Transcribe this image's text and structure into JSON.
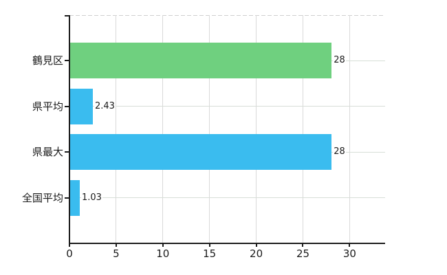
{
  "chart_data": {
    "type": "bar",
    "orientation": "horizontal",
    "title": "",
    "categories": [
      "鶴見区",
      "県平均",
      "県最大",
      "全国平均"
    ],
    "values": [
      28,
      2.43,
      28,
      1.03
    ],
    "value_labels": [
      "28",
      "2.43",
      "28",
      "1.03"
    ],
    "bar_colors": [
      "#6FD07F",
      "#3ABCEF",
      "#3ABCEF",
      "#3ABCEF"
    ],
    "x_ticks": [
      0,
      5,
      10,
      15,
      20,
      25,
      30
    ],
    "x_tick_labels": [
      "0",
      "5",
      "10",
      "15",
      "20",
      "25",
      "30"
    ],
    "xlim": [
      0,
      33.8
    ],
    "grid": true,
    "legend": false,
    "colors": {
      "bar_green": "#6FD07F",
      "bar_blue": "#3ABCEF",
      "axis": "#1c1c1c",
      "grid_vertical": "#d9d9d9",
      "grid_horizontal": "#d7ded7",
      "top_border": "#cfcfcf",
      "text": "#1a1a1a"
    }
  }
}
